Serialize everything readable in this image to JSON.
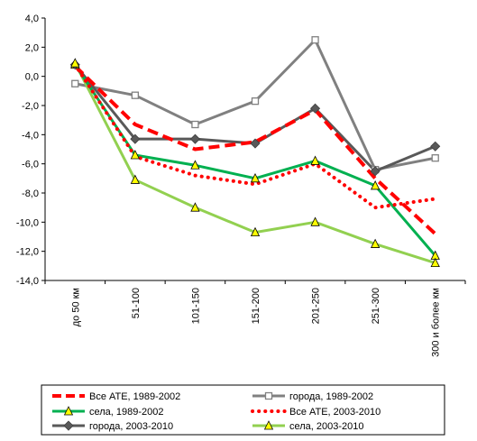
{
  "chart_data": {
    "type": "line",
    "categories": [
      "до 50 км",
      "51-100",
      "101-150",
      "151-200",
      "201-250",
      "251-300",
      "300 и более км"
    ],
    "ylim": [
      -14,
      4
    ],
    "yticks": [
      "4,0",
      "2,0",
      "0,0",
      "-2,0",
      "-4,0",
      "-6,0",
      "-8,0",
      "-10,0",
      "-12,0",
      "-14,0"
    ],
    "ytick_values": [
      4,
      2,
      0,
      -2,
      -4,
      -6,
      -8,
      -10,
      -12,
      -14
    ],
    "grid": false,
    "legend_position": "bottom",
    "series": [
      {
        "name": "Все АТЕ, 1989-2002",
        "values": [
          0.7,
          -3.3,
          -5.0,
          -4.5,
          -2.3,
          -7.0,
          -10.8
        ],
        "color": "#ff0000",
        "style": "dashed",
        "marker": "none"
      },
      {
        "name": "города, 1989-2002",
        "values": [
          -0.5,
          -1.3,
          -3.3,
          -1.7,
          2.5,
          -6.4,
          -5.6
        ],
        "color": "#808080",
        "style": "solid",
        "marker": "square"
      },
      {
        "name": "села, 1989-2002",
        "values": [
          0.8,
          -5.4,
          -6.1,
          -7.0,
          -5.8,
          -7.5,
          -12.3
        ],
        "color": "#00b050",
        "style": "solid",
        "marker": "triangle"
      },
      {
        "name": "Все АТЕ, 2003-2010",
        "values": [
          0.8,
          -5.5,
          -6.8,
          -7.4,
          -6.0,
          -9.0,
          -8.4
        ],
        "color": "#ff0000",
        "style": "dotted",
        "marker": "none"
      },
      {
        "name": "города, 2003-2010",
        "values": [
          0.8,
          -4.3,
          -4.3,
          -4.6,
          -2.2,
          -6.5,
          -4.8
        ],
        "color": "#595959",
        "style": "solid",
        "marker": "diamond"
      },
      {
        "name": "села, 2003-2010",
        "values": [
          0.9,
          -7.1,
          -9.0,
          -10.7,
          -10.0,
          -11.5,
          -12.8
        ],
        "color": "#92d050",
        "style": "solid",
        "marker": "triangle"
      }
    ]
  }
}
